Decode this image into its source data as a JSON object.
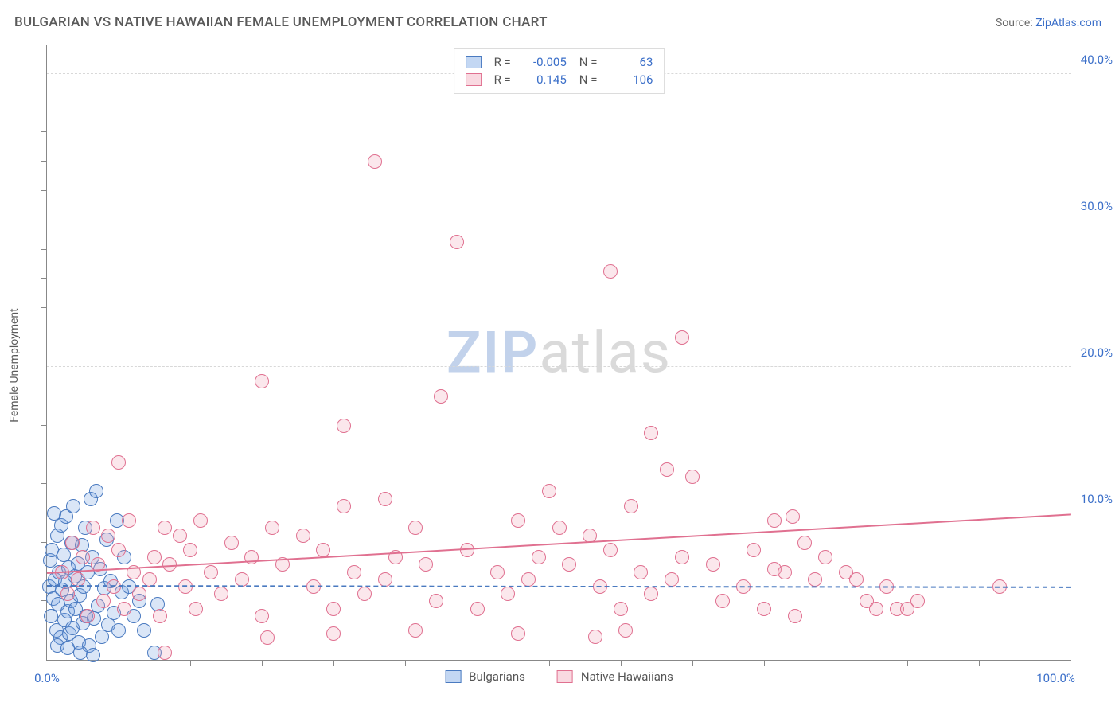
{
  "header": {
    "title": "BULGARIAN VS NATIVE HAWAIIAN FEMALE UNEMPLOYMENT CORRELATION CHART",
    "source_prefix": "Source: ",
    "source_link": "ZipAtlas.com"
  },
  "chart": {
    "type": "scatter",
    "y_axis_label": "Female Unemployment",
    "xlim": [
      0,
      100
    ],
    "ylim": [
      0,
      42
    ],
    "x_ticks_major": [
      0,
      100
    ],
    "x_tick_labels": [
      "0.0%",
      "100.0%"
    ],
    "x_ticks_minor": [
      7,
      14,
      21,
      28,
      35,
      42,
      49,
      56,
      63,
      70,
      77,
      84,
      91
    ],
    "y_gridlines": [
      10,
      20,
      30,
      40
    ],
    "y_tick_labels": [
      "10.0%",
      "20.0%",
      "30.0%",
      "40.0%"
    ],
    "y_ticks_minor": [
      2,
      4,
      6,
      8,
      12,
      14,
      16,
      18,
      22,
      24,
      26,
      28,
      32,
      34,
      36,
      38
    ],
    "background_color": "#ffffff",
    "grid_color": "#d8d8d8",
    "axis_color": "#888888",
    "tick_label_color": "#3b6fc9",
    "marker_radius": 9,
    "marker_stroke_width": 1.5,
    "marker_fill_opacity": 0.25,
    "trend_line_width": 2,
    "series": [
      {
        "key": "bulgarians",
        "label": "Bulgarians",
        "color": "#6a9ae0",
        "border_color": "#4a7ac0",
        "R": "-0.005",
        "N": "63",
        "trend": {
          "x1": 0,
          "y1": 5.1,
          "x2": 100,
          "y2": 5.0,
          "dash": "6 5"
        },
        "points": [
          [
            0.2,
            5.0
          ],
          [
            0.3,
            6.8
          ],
          [
            0.4,
            3.0
          ],
          [
            0.5,
            7.5
          ],
          [
            0.6,
            4.2
          ],
          [
            0.8,
            5.5
          ],
          [
            0.9,
            2.0
          ],
          [
            1.0,
            8.5
          ],
          [
            1.1,
            3.8
          ],
          [
            1.2,
            6.0
          ],
          [
            1.3,
            1.5
          ],
          [
            1.5,
            4.8
          ],
          [
            1.6,
            7.2
          ],
          [
            1.7,
            2.7
          ],
          [
            1.8,
            5.3
          ],
          [
            2.0,
            3.3
          ],
          [
            2.1,
            6.3
          ],
          [
            2.2,
            1.8
          ],
          [
            2.3,
            4.0
          ],
          [
            2.4,
            8.0
          ],
          [
            2.5,
            2.2
          ],
          [
            2.7,
            5.7
          ],
          [
            2.8,
            3.5
          ],
          [
            3.0,
            6.6
          ],
          [
            3.1,
            1.2
          ],
          [
            3.2,
            4.4
          ],
          [
            3.4,
            7.8
          ],
          [
            3.5,
            2.5
          ],
          [
            3.6,
            5.0
          ],
          [
            3.8,
            3.0
          ],
          [
            4.0,
            6.0
          ],
          [
            4.1,
            1.0
          ],
          [
            4.3,
            11.0
          ],
          [
            4.4,
            7.0
          ],
          [
            4.6,
            2.8
          ],
          [
            4.8,
            11.5
          ],
          [
            5.0,
            3.7
          ],
          [
            5.2,
            6.2
          ],
          [
            5.4,
            1.6
          ],
          [
            5.6,
            4.9
          ],
          [
            5.8,
            8.2
          ],
          [
            6.0,
            2.4
          ],
          [
            6.2,
            5.4
          ],
          [
            6.5,
            3.2
          ],
          [
            6.8,
            9.5
          ],
          [
            7.0,
            2.0
          ],
          [
            7.3,
            4.6
          ],
          [
            7.5,
            7.0
          ],
          [
            1.4,
            9.2
          ],
          [
            1.9,
            9.8
          ],
          [
            2.6,
            10.5
          ],
          [
            3.7,
            9.0
          ],
          [
            0.7,
            10.0
          ],
          [
            1.0,
            1.0
          ],
          [
            2.0,
            0.8
          ],
          [
            3.3,
            0.5
          ],
          [
            4.5,
            0.3
          ],
          [
            10.8,
            3.8
          ],
          [
            10.5,
            0.5
          ],
          [
            8.0,
            5.0
          ],
          [
            8.5,
            3.0
          ],
          [
            9.0,
            4.0
          ],
          [
            9.5,
            2.0
          ]
        ]
      },
      {
        "key": "native_hawaiians",
        "label": "Native Hawaiians",
        "color": "#f0a0b5",
        "border_color": "#e07090",
        "R": "0.145",
        "N": "106",
        "trend": {
          "x1": 0,
          "y1": 6.0,
          "x2": 100,
          "y2": 10.0,
          "dash": null
        },
        "points": [
          [
            1.5,
            6.0
          ],
          [
            2.0,
            4.5
          ],
          [
            2.5,
            8.0
          ],
          [
            3.0,
            5.5
          ],
          [
            3.5,
            7.0
          ],
          [
            4.0,
            3.0
          ],
          [
            4.5,
            9.0
          ],
          [
            5.0,
            6.5
          ],
          [
            5.5,
            4.0
          ],
          [
            6.0,
            8.5
          ],
          [
            6.5,
            5.0
          ],
          [
            7.0,
            7.5
          ],
          [
            7.5,
            3.5
          ],
          [
            8.0,
            9.5
          ],
          [
            8.5,
            6.0
          ],
          [
            9.0,
            4.5
          ],
          [
            7.0,
            13.5
          ],
          [
            10.0,
            5.5
          ],
          [
            10.5,
            7.0
          ],
          [
            11.0,
            3.0
          ],
          [
            11.5,
            9.0
          ],
          [
            12.0,
            6.5
          ],
          [
            11.5,
            0.5
          ],
          [
            13.0,
            8.5
          ],
          [
            13.5,
            5.0
          ],
          [
            14.0,
            7.5
          ],
          [
            14.5,
            3.5
          ],
          [
            15.0,
            9.5
          ],
          [
            16.0,
            6.0
          ],
          [
            17.0,
            4.5
          ],
          [
            18.0,
            8.0
          ],
          [
            19.0,
            5.5
          ],
          [
            20.0,
            7.0
          ],
          [
            21.0,
            3.0
          ],
          [
            22.0,
            9.0
          ],
          [
            23.0,
            6.5
          ],
          [
            21.0,
            19.0
          ],
          [
            25.0,
            8.5
          ],
          [
            26.0,
            5.0
          ],
          [
            27.0,
            7.5
          ],
          [
            28.0,
            3.5
          ],
          [
            29.0,
            10.5
          ],
          [
            30.0,
            6.0
          ],
          [
            31.0,
            4.5
          ],
          [
            29.0,
            16.0
          ],
          [
            33.0,
            5.5
          ],
          [
            34.0,
            7.0
          ],
          [
            32.0,
            34.0
          ],
          [
            36.0,
            9.0
          ],
          [
            37.0,
            6.5
          ],
          [
            38.0,
            4.0
          ],
          [
            33.0,
            11.0
          ],
          [
            38.5,
            18.0
          ],
          [
            41.0,
            7.5
          ],
          [
            42.0,
            3.5
          ],
          [
            40.0,
            28.5
          ],
          [
            44.0,
            6.0
          ],
          [
            45.0,
            4.5
          ],
          [
            46.0,
            9.5
          ],
          [
            47.0,
            5.5
          ],
          [
            48.0,
            7.0
          ],
          [
            49.0,
            11.5
          ],
          [
            50.0,
            9.0
          ],
          [
            51.0,
            6.5
          ],
          [
            55.0,
            26.5
          ],
          [
            53.0,
            8.5
          ],
          [
            54.0,
            5.0
          ],
          [
            55.0,
            7.5
          ],
          [
            56.0,
            3.5
          ],
          [
            57.0,
            10.5
          ],
          [
            58.0,
            6.0
          ],
          [
            59.0,
            4.5
          ],
          [
            62.0,
            22.0
          ],
          [
            61.0,
            5.5
          ],
          [
            62.0,
            7.0
          ],
          [
            59.0,
            15.5
          ],
          [
            60.5,
            13.0
          ],
          [
            65.0,
            6.5
          ],
          [
            66.0,
            4.0
          ],
          [
            63.0,
            12.5
          ],
          [
            68.0,
            5.0
          ],
          [
            69.0,
            7.5
          ],
          [
            70.0,
            3.5
          ],
          [
            71.0,
            6.2
          ],
          [
            72.0,
            6.0
          ],
          [
            73.0,
            3.0
          ],
          [
            74.0,
            8.0
          ],
          [
            75.0,
            5.5
          ],
          [
            76.0,
            7.0
          ],
          [
            71.0,
            9.5
          ],
          [
            78.0,
            6.0
          ],
          [
            79.0,
            5.5
          ],
          [
            80.0,
            4.0
          ],
          [
            81.0,
            3.5
          ],
          [
            82.0,
            5.0
          ],
          [
            83.0,
            3.5
          ],
          [
            84.0,
            3.5
          ],
          [
            85.0,
            4.0
          ],
          [
            93.0,
            5.0
          ],
          [
            72.8,
            9.8
          ],
          [
            53.5,
            1.6
          ],
          [
            46.0,
            1.8
          ],
          [
            21.5,
            1.5
          ],
          [
            28.0,
            1.8
          ],
          [
            36.0,
            2.0
          ],
          [
            56.5,
            2.0
          ]
        ]
      }
    ],
    "watermark": {
      "part1": "ZIP",
      "part2": "atlas"
    }
  },
  "legend_top": {
    "r_label": "R =",
    "n_label": "N ="
  }
}
